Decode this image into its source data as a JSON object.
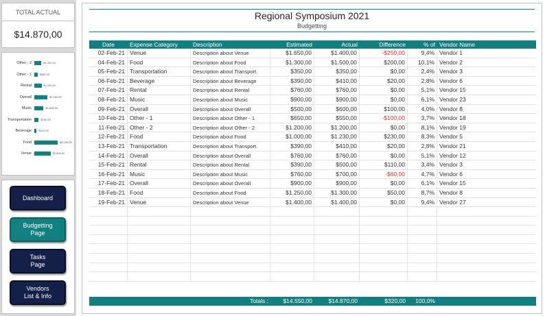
{
  "sidebar": {
    "total_label": "TOTAL ACTUAL",
    "total_value": "$14.870,00",
    "chart": {
      "categories": [
        "Other - 2",
        "Other - 1",
        "Rental",
        "Overall",
        "Music",
        "Transportation",
        "Beverage",
        "Food",
        "Venue"
      ],
      "values": [
        1200,
        550,
        1260,
        2260,
        1600,
        760,
        410,
        4030,
        2800
      ],
      "value_labels": [
        "$1.200,00",
        "$550,00",
        "$1.260,00",
        "$2.260,00",
        "$1.600,00",
        "$760,00",
        "$410,00",
        "$4.030,00",
        "$2.800,00"
      ],
      "bar_color": "#128080"
    },
    "nav": [
      {
        "label": "Dashboard",
        "style": "dark"
      },
      {
        "label": "Budgetting\nPage",
        "style": "teal"
      },
      {
        "label": "Tasks\nPage",
        "style": "dark"
      },
      {
        "label": "Vendors\nList & Info",
        "style": "dark"
      }
    ]
  },
  "main": {
    "title": "Regional Symposium 2021",
    "subtitle": "Budgetting",
    "columns": [
      "Date",
      "Expense Category",
      "Description",
      "Estimated",
      "Actual",
      "Difference",
      "% of Total",
      "Vendor Name"
    ],
    "rows": [
      [
        "02-Feb-21",
        "Venue",
        "Description about Venue",
        "$1.650,00",
        "$1.400,00",
        "-$250,00",
        "9,4%",
        "Vendor 1"
      ],
      [
        "04-Feb-21",
        "Food",
        "Description about Food",
        "$1.300,00",
        "$1.500,00",
        "$200,00",
        "10,1%",
        "Vendor 2"
      ],
      [
        "05-Feb-21",
        "Transportation",
        "Description about Transport.",
        "$350,00",
        "$350,00",
        "$0,00",
        "2,4%",
        "Vendor 3"
      ],
      [
        "06-Feb-21",
        "Beverage",
        "Description about Beverage",
        "$390,00",
        "$410,00",
        "$20,00",
        "2,8%",
        "Vendor 6"
      ],
      [
        "07-Feb-21",
        "Rental",
        "Description about Rental",
        "$760,00",
        "$760,00",
        "$0,00",
        "5,1%",
        "Vendor 15"
      ],
      [
        "08-Feb-21",
        "Music",
        "Description about Music",
        "$900,00",
        "$900,00",
        "$0,00",
        "6,1%",
        "Vendor 23"
      ],
      [
        "09-Feb-21",
        "Overall",
        "Description about Overall",
        "$500,00",
        "$600,00",
        "$100,00",
        "4,0%",
        "Vendor 8"
      ],
      [
        "10-Feb-21",
        "Other - 1",
        "Description about Other - 1",
        "$650,00",
        "$550,00",
        "-$100,00",
        "3,7%",
        "Vendor 18"
      ],
      [
        "11-Feb-21",
        "Other - 2",
        "Description about Other - 2",
        "$1.200,00",
        "$1.200,00",
        "$0,00",
        "8,1%",
        "Vendor 19"
      ],
      [
        "12-Feb-21",
        "Food",
        "Description about Food",
        "$1.000,00",
        "$1.230,00",
        "$230,00",
        "8,3%",
        "Vendor 5"
      ],
      [
        "13-Feb-21",
        "Transportation",
        "Description about Transport.",
        "$390,00",
        "$410,00",
        "$20,00",
        "2,8%",
        "Vendor 21"
      ],
      [
        "14-Feb-21",
        "Overall",
        "Description about Overall",
        "$760,00",
        "$760,00",
        "$0,00",
        "5,1%",
        "Vendor 12"
      ],
      [
        "15-Feb-21",
        "Rental",
        "Description about Rental",
        "$390,00",
        "$500,00",
        "$110,00",
        "3,4%",
        "Vendor 3"
      ],
      [
        "16-Feb-21",
        "Music",
        "Description about Music",
        "$760,00",
        "$700,00",
        "-$60,00",
        "4,7%",
        "Vendor 6"
      ],
      [
        "17-Feb-21",
        "Overall",
        "Description about Overall",
        "$900,00",
        "$900,00",
        "$0,00",
        "6,1%",
        "Vendor 15"
      ],
      [
        "18-Feb-21",
        "Food",
        "Description about Food",
        "$1.250,00",
        "$1.300,00",
        "$50,00",
        "8,7%",
        "Vendor 8"
      ],
      [
        "19-Feb-21",
        "Venue",
        "Description about Venue",
        "$1.400,00",
        "$1.400,00",
        "$0,00",
        "9,4%",
        "Vendor 27"
      ]
    ],
    "empty_rows": 8,
    "totals": {
      "label": "Totals :",
      "estimated": "$14.550,00",
      "actual": "$14.870,00",
      "difference": "$320,00",
      "pct": "100,0%"
    },
    "accent_color": "#128080",
    "negative_color": "#e03030"
  }
}
